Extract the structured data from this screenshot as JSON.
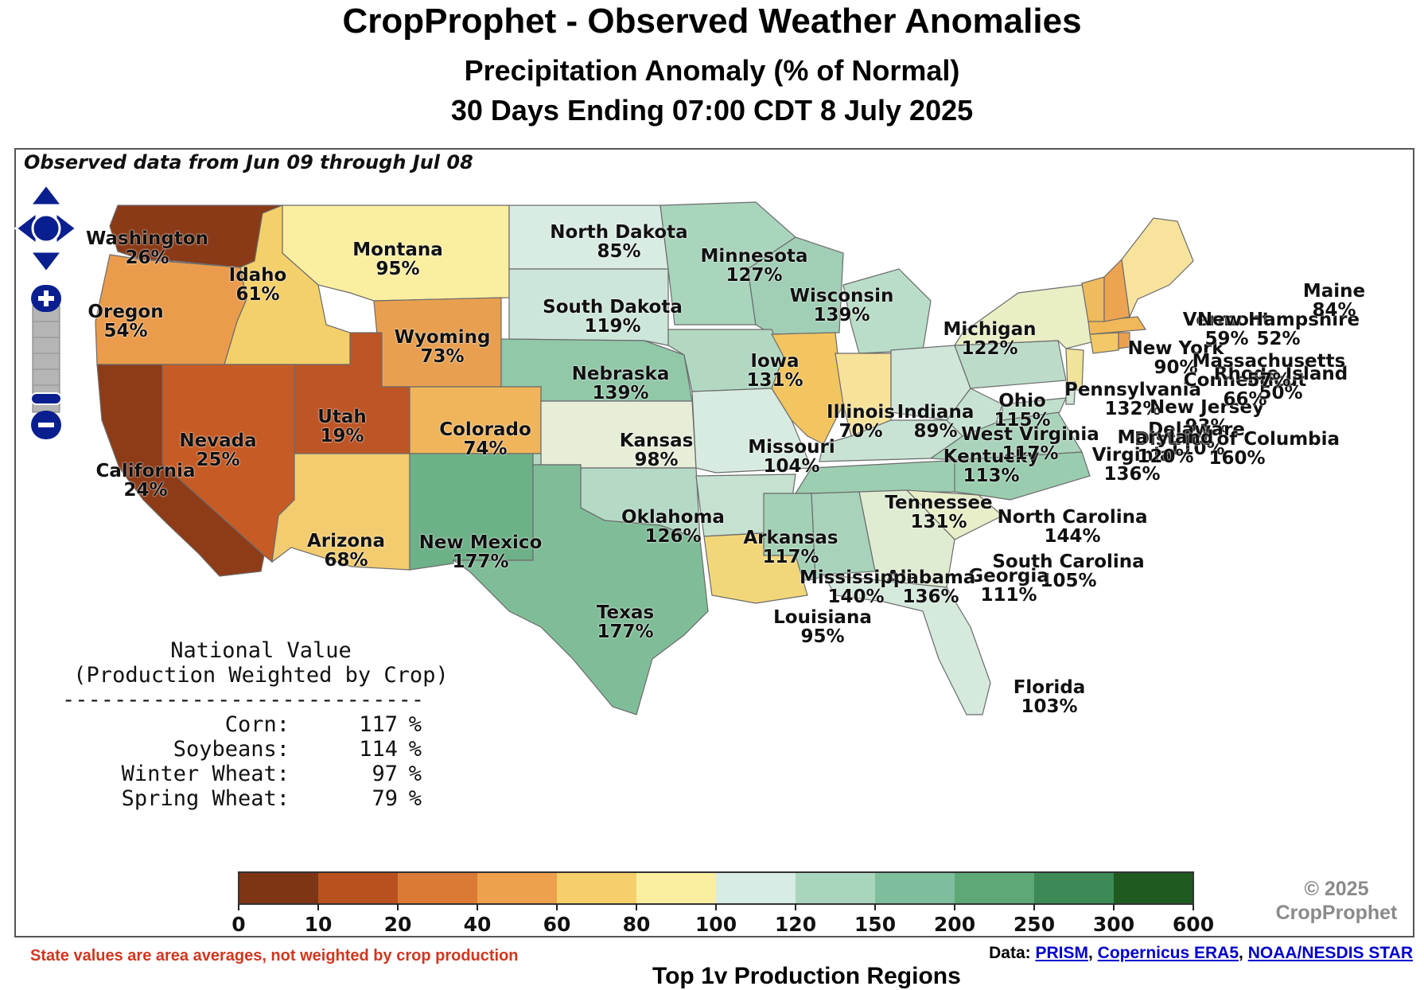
{
  "header": {
    "title": "CropProphet - Observed Weather Anomalies",
    "subtitle1": "Precipitation Anomaly (% of Normal)",
    "subtitle2": "30 Days Ending 07:00 CDT 8 July 2025"
  },
  "map": {
    "observed_note": "Observed data from Jun 09 through Jul 08",
    "states": [
      {
        "name": "Washington",
        "value": "26%",
        "color": "#8a3a17"
      },
      {
        "name": "Oregon",
        "value": "54%",
        "color": "#ea9c4c"
      },
      {
        "name": "Idaho",
        "value": "61%",
        "color": "#f4d06a"
      },
      {
        "name": "Montana",
        "value": "95%",
        "color": "#fbeea0"
      },
      {
        "name": "Wyoming",
        "value": "73%",
        "color": "#e8a050"
      },
      {
        "name": "North Dakota",
        "value": "85%",
        "color": "#d9ece3"
      },
      {
        "name": "South Dakota",
        "value": "119%",
        "color": "#cde6da"
      },
      {
        "name": "Minnesota",
        "value": "127%",
        "color": "#a9d5bd"
      },
      {
        "name": "Wisconsin",
        "value": "139%",
        "color": "#a0cfb5"
      },
      {
        "name": "Michigan",
        "value": "122%",
        "color": "#b9ddc8"
      },
      {
        "name": "Nebraska",
        "value": "139%",
        "color": "#90c8a8"
      },
      {
        "name": "Iowa",
        "value": "131%",
        "color": "#b2d8c2"
      },
      {
        "name": "Illinois",
        "value": "70%",
        "color": "#f3c560"
      },
      {
        "name": "Indiana",
        "value": "89%",
        "color": "#f7e29a"
      },
      {
        "name": "Ohio",
        "value": "115%",
        "color": "#cfe6d9"
      },
      {
        "name": "Utah",
        "value": "19%",
        "color": "#bd5526"
      },
      {
        "name": "Nevada",
        "value": "25%",
        "color": "#c75b25"
      },
      {
        "name": "California",
        "value": "24%",
        "color": "#8e3b18"
      },
      {
        "name": "Colorado",
        "value": "74%",
        "color": "#f0b45a"
      },
      {
        "name": "Kansas",
        "value": "98%",
        "color": "#e6eed8"
      },
      {
        "name": "Missouri",
        "value": "104%",
        "color": "#d8ebe0"
      },
      {
        "name": "Kentucky",
        "value": "113%",
        "color": "#c8e3d3"
      },
      {
        "name": "Arizona",
        "value": "68%",
        "color": "#f3cc70"
      },
      {
        "name": "New Mexico",
        "value": "177%",
        "color": "#6db188"
      },
      {
        "name": "Oklahoma",
        "value": "126%",
        "color": "#b4dac5"
      },
      {
        "name": "Arkansas",
        "value": "117%",
        "color": "#c5e1d0"
      },
      {
        "name": "Tennessee",
        "value": "131%",
        "color": "#9cceb1"
      },
      {
        "name": "North Carolina",
        "value": "144%",
        "color": "#9acdaf"
      },
      {
        "name": "South Carolina",
        "value": "105%",
        "color": "#e8efc8"
      },
      {
        "name": "Georgia",
        "value": "111%",
        "color": "#dfecd2"
      },
      {
        "name": "Alabama",
        "value": "136%",
        "color": "#a8d3ba"
      },
      {
        "name": "Mississippi",
        "value": "140%",
        "color": "#a3d1b6"
      },
      {
        "name": "Louisiana",
        "value": "95%",
        "color": "#f2d77a"
      },
      {
        "name": "Texas",
        "value": "177%",
        "color": "#7fbd98"
      },
      {
        "name": "Florida",
        "value": "103%",
        "color": "#d5e9dd"
      },
      {
        "name": "Pennsylvania",
        "value": "132%",
        "color": "#bcdcc9"
      },
      {
        "name": "New York",
        "value": "90%",
        "color": "#e9eec4"
      },
      {
        "name": "West Virginia",
        "value": "117%",
        "color": "#c6e2d2"
      },
      {
        "name": "Virginia",
        "value": "136%",
        "color": "#a9d4bb"
      },
      {
        "name": "New Jersey",
        "value": "93%",
        "color": "#f1e49a"
      },
      {
        "name": "Delaware",
        "value": "110%",
        "color": "#cfe6d9"
      },
      {
        "name": "District of Columbia",
        "value": "160%",
        "color": "#8fc6a7"
      },
      {
        "name": "Maryland",
        "value": "120%",
        "color": "#c0dfcc"
      },
      {
        "name": "Connecticut",
        "value": "66%",
        "color": "#f2c868"
      },
      {
        "name": "Rhode Island",
        "value": "50%",
        "color": "#eba050"
      },
      {
        "name": "Massachusetts",
        "value": "57%",
        "color": "#f0b858"
      },
      {
        "name": "Vermont",
        "value": "59%",
        "color": "#eebc5e"
      },
      {
        "name": "New Hampshire",
        "value": "52%",
        "color": "#eda452"
      },
      {
        "name": "Maine",
        "value": "84%",
        "color": "#f7e39c"
      }
    ]
  },
  "national": {
    "title1": "National Value",
    "title2": "(Production Weighted by Crop)",
    "rule": "----------------------------",
    "rows": [
      {
        "label": "Corn:",
        "value": "117",
        "unit": "%"
      },
      {
        "label": "Soybeans:",
        "value": "114",
        "unit": "%"
      },
      {
        "label": "Winter Wheat:",
        "value": "97",
        "unit": "%"
      },
      {
        "label": "Spring Wheat:",
        "value": "79",
        "unit": "%"
      }
    ]
  },
  "legend": {
    "ticks": [
      "0",
      "10",
      "20",
      "40",
      "60",
      "80",
      "100",
      "120",
      "150",
      "200",
      "250",
      "300",
      "600"
    ],
    "colors": [
      "#7d3514",
      "#b9501f",
      "#da7a34",
      "#eda14c",
      "#f5d06a",
      "#fbeea0",
      "#d6ece4",
      "#a9d5bd",
      "#7ebe9c",
      "#5ea878",
      "#3d8a56",
      "#1f5a20"
    ]
  },
  "copyright": {
    "line1": "© 2025",
    "line2": "CropProphet"
  },
  "footer": {
    "note": "State values are area averages, not weighted by crop production",
    "data_prefix": "Data: ",
    "links": [
      "PRISM",
      "Copernicus ERA5",
      "NOAA/NESDIS STAR"
    ],
    "partial_heading": "Top 1v Production Regions"
  }
}
